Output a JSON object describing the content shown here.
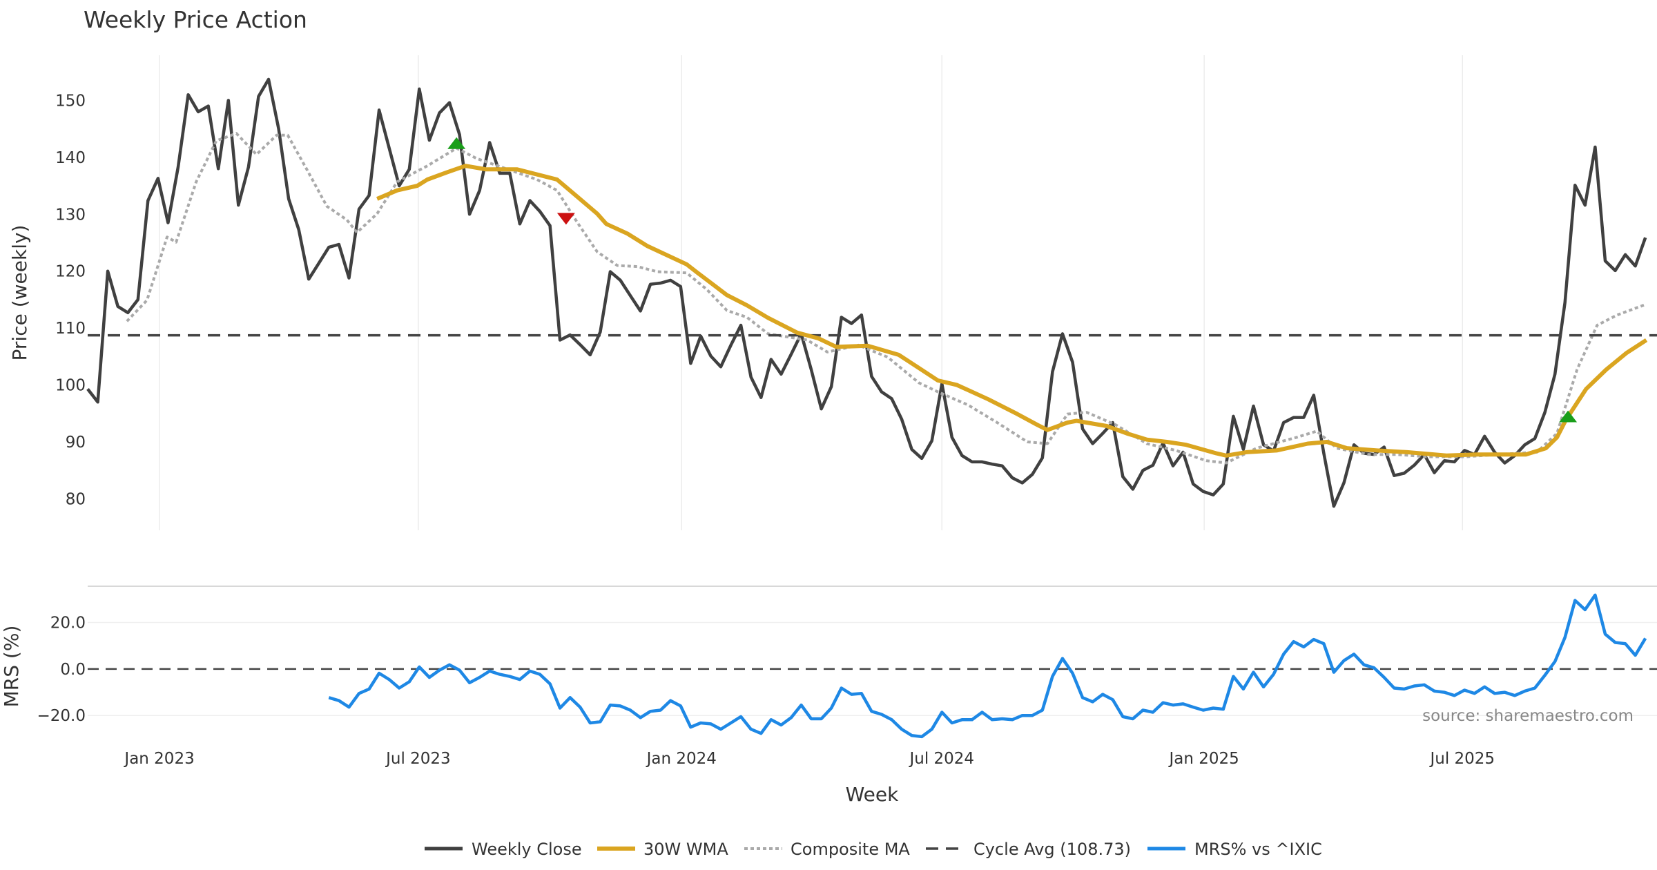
{
  "chart_data": [
    {
      "type": "line",
      "title": "Weekly Price Action",
      "ylabel": "Price (weekly)",
      "xlabel": "Week",
      "ylim": [
        74,
        158
      ],
      "y_ticks": [
        80,
        90,
        100,
        110,
        120,
        130,
        140,
        150
      ],
      "x_unit": "week index from first weekly bar (~Nov 2022)",
      "x_ticks": [
        {
          "label": "Jan 2023",
          "week": 7.15
        },
        {
          "label": "Jul 2023",
          "week": 32.9
        },
        {
          "label": "Jan 2024",
          "week": 59.1
        },
        {
          "label": "Jul 2024",
          "week": 85.0
        },
        {
          "label": "Jan 2025",
          "week": 111.1
        },
        {
          "label": "Jul 2025",
          "week": 136.8
        }
      ],
      "grid": "vertical at x ticks",
      "series": [
        {
          "name": "Weekly Close",
          "color": "#404040",
          "style": "solid",
          "values": [
            99.3,
            97,
            120,
            113.8,
            112.7,
            115,
            132.4,
            136.3,
            128.5,
            138.3,
            151,
            148,
            149,
            138,
            150,
            131.6,
            138.3,
            150.7,
            153.7,
            145,
            132.7,
            127.3,
            118.6,
            121.4,
            124.2,
            124.7,
            118.8,
            130.9,
            133.3,
            148.3,
            141.6,
            135,
            137.9,
            152,
            143,
            147.8,
            149.6,
            144,
            130,
            134.2,
            142.6,
            137.2,
            137.2,
            128.3,
            132.4,
            130.5,
            128,
            107.9,
            108.8,
            107.1,
            105.3,
            109.3,
            119.9,
            118.4,
            115.7,
            113,
            117.7,
            117.9,
            118.4,
            117.3,
            103.8,
            108.6,
            105.1,
            103.2,
            107,
            110.5,
            101.4,
            97.8,
            104.5,
            101.9,
            105.4,
            109,
            102.7,
            95.8,
            99.7,
            111.9,
            110.8,
            112.3,
            101.5,
            98.8,
            97.6,
            94,
            88.7,
            87.1,
            90.2,
            100.2,
            90.8,
            87.6,
            86.5,
            86.5,
            86.1,
            85.8,
            83.7,
            82.8,
            84.3,
            87.2,
            102.3,
            109,
            104,
            92.3,
            89.7,
            91.5,
            93.4,
            83.9,
            81.7,
            85,
            85.9,
            89.8,
            85.8,
            88.2,
            82.6,
            81.3,
            80.7,
            82.6,
            94.5,
            88.7,
            96.3,
            89.5,
            88.4,
            93.4,
            94.3,
            94.3,
            98.2,
            88,
            78.7,
            82.8,
            89.5,
            88,
            87.8,
            89.1,
            84.1,
            84.5,
            85.9,
            87.8,
            84.6,
            86.7,
            86.5,
            88.5,
            87.8,
            91,
            88.2,
            86.3,
            87.6,
            89.5,
            90.6,
            95.2,
            101.9,
            114.5,
            135.1,
            131.6,
            141.8,
            121.8,
            120.1,
            122.9,
            120.9,
            125.9
          ]
        },
        {
          "name": "30W WMA",
          "color": "#DAA520",
          "style": "solid",
          "points": [
            [
              28.8,
              132.7
            ],
            [
              30.8,
              134.2
            ],
            [
              32.8,
              135
            ],
            [
              33.8,
              136.1
            ],
            [
              35.8,
              137.4
            ],
            [
              37.6,
              138.5
            ],
            [
              39.6,
              137.9
            ],
            [
              42.7,
              137.9
            ],
            [
              46.7,
              136.1
            ],
            [
              48.7,
              133.1
            ],
            [
              50.7,
              130.1
            ],
            [
              51.6,
              128.3
            ],
            [
              53.7,
              126.6
            ],
            [
              55.7,
              124.4
            ],
            [
              59.6,
              121.2
            ],
            [
              60.7,
              119.7
            ],
            [
              63.6,
              115.8
            ],
            [
              65.6,
              114
            ],
            [
              67.7,
              111.8
            ],
            [
              70.6,
              109.2
            ],
            [
              72.7,
              108.2
            ],
            [
              74.5,
              106.7
            ],
            [
              77.6,
              106.9
            ],
            [
              80.7,
              105.3
            ],
            [
              82.7,
              103
            ],
            [
              84.6,
              100.8
            ],
            [
              86.5,
              100
            ],
            [
              89.6,
              97.5
            ],
            [
              92.5,
              94.9
            ],
            [
              94.5,
              93
            ],
            [
              95.5,
              92.1
            ],
            [
              97.5,
              93.4
            ],
            [
              98.4,
              93.7
            ],
            [
              101.4,
              92.8
            ],
            [
              103.4,
              91.5
            ],
            [
              105.4,
              90.4
            ],
            [
              107.4,
              90
            ],
            [
              109.3,
              89.5
            ],
            [
              112.3,
              88
            ],
            [
              113.3,
              87.6
            ],
            [
              115.3,
              88.2
            ],
            [
              118.3,
              88.5
            ],
            [
              121.4,
              89.7
            ],
            [
              123.3,
              90
            ],
            [
              125.3,
              88.9
            ],
            [
              128.3,
              88.5
            ],
            [
              131.3,
              88.2
            ],
            [
              135.2,
              87.6
            ],
            [
              138.2,
              87.8
            ],
            [
              143.1,
              87.8
            ],
            [
              145.1,
              88.9
            ],
            [
              146.2,
              90.8
            ],
            [
              147.1,
              93.9
            ],
            [
              149.1,
              99.3
            ],
            [
              151.1,
              102.7
            ],
            [
              153.1,
              105.6
            ],
            [
              155.1,
              107.9
            ]
          ]
        },
        {
          "name": "Composite MA",
          "color": "#AAAAAA",
          "style": "dotted",
          "points": [
            [
              3.9,
              111.2
            ],
            [
              5.9,
              114.9
            ],
            [
              7.9,
              126
            ],
            [
              8.8,
              125.1
            ],
            [
              10.8,
              135.7
            ],
            [
              12.8,
              142.9
            ],
            [
              14.8,
              144.2
            ],
            [
              16.8,
              140.5
            ],
            [
              18.8,
              143.9
            ],
            [
              19.9,
              143.9
            ],
            [
              21.8,
              137.9
            ],
            [
              23.8,
              131.4
            ],
            [
              25.8,
              129
            ],
            [
              26.8,
              126.8
            ],
            [
              28.8,
              130.1
            ],
            [
              30.8,
              135.7
            ],
            [
              33.8,
              138.5
            ],
            [
              36.7,
              141.6
            ],
            [
              38.7,
              139.8
            ],
            [
              41.8,
              137.9
            ],
            [
              44.7,
              136.1
            ],
            [
              46.7,
              134.2
            ],
            [
              48.7,
              128.6
            ],
            [
              50.7,
              123.4
            ],
            [
              52.7,
              121
            ],
            [
              54.7,
              120.8
            ],
            [
              56.7,
              119.9
            ],
            [
              59.6,
              119.7
            ],
            [
              61.6,
              116.8
            ],
            [
              63.6,
              113.1
            ],
            [
              65.6,
              111.9
            ],
            [
              67.7,
              109
            ],
            [
              71.6,
              107.9
            ],
            [
              73.6,
              105.8
            ],
            [
              76.7,
              107
            ],
            [
              79.6,
              104.9
            ],
            [
              82.7,
              100.4
            ],
            [
              84.6,
              98.8
            ],
            [
              87.6,
              96.5
            ],
            [
              90.5,
              93.4
            ],
            [
              93.5,
              90
            ],
            [
              95.5,
              89.7
            ],
            [
              97.5,
              94.9
            ],
            [
              99.4,
              95.2
            ],
            [
              102.3,
              93
            ],
            [
              105.4,
              89.7
            ],
            [
              108.3,
              88.5
            ],
            [
              111.3,
              86.7
            ],
            [
              113.3,
              86.3
            ],
            [
              116.3,
              88.9
            ],
            [
              120.3,
              90.8
            ],
            [
              122.3,
              91.9
            ],
            [
              124.3,
              88.9
            ],
            [
              127.4,
              87.8
            ],
            [
              130.3,
              87.8
            ],
            [
              133.2,
              87.4
            ],
            [
              137.2,
              87.4
            ],
            [
              140.2,
              87.8
            ],
            [
              144.2,
              88.2
            ],
            [
              146.2,
              91.5
            ],
            [
              148.2,
              102.7
            ],
            [
              150.2,
              110.5
            ],
            [
              152.2,
              112.3
            ],
            [
              155.1,
              114.2
            ]
          ]
        },
        {
          "name": "Cycle Avg (108.73)",
          "color": "#444444",
          "style": "dashed",
          "value": 108.73
        }
      ],
      "signals": [
        {
          "type": "buy",
          "week": 36.7,
          "value": 142.5,
          "color": "#1a9e1a"
        },
        {
          "type": "sell",
          "week": 47.6,
          "value": 129.2,
          "color": "#cc1111"
        },
        {
          "type": "buy",
          "week": 147.3,
          "value": 94.5,
          "color": "#1a9e1a"
        }
      ]
    },
    {
      "type": "line",
      "ylabel": "MRS (%)",
      "ylim": [
        -28,
        36
      ],
      "y_ticks": [
        {
          "value": 20,
          "label": "20.0"
        },
        {
          "value": 0,
          "label": "0.0"
        },
        {
          "value": -20,
          "label": "−20.0"
        }
      ],
      "zero_line": "dashed",
      "series": [
        {
          "name": "MRS% vs ^IXIC",
          "color": "#1E88E5",
          "style": "solid",
          "aligned": "end",
          "values": [
            -12.3,
            -13.6,
            -16.4,
            -10.5,
            -8.6,
            -1.8,
            -4.5,
            -8.2,
            -5.5,
            0.9,
            -3.6,
            -0.5,
            1.8,
            -0.5,
            -5.9,
            -3.6,
            -0.9,
            -2.3,
            -3.2,
            -4.5,
            -0.9,
            -2.3,
            -6.4,
            -16.8,
            -12.3,
            -16.4,
            -23.2,
            -22.7,
            -15.5,
            -15.9,
            -17.7,
            -20.9,
            -18.2,
            -17.7,
            -13.6,
            -15.9,
            -25,
            -23.2,
            -23.6,
            -25.9,
            -23.2,
            -20.5,
            -25.9,
            -27.7,
            -21.8,
            -24.1,
            -20.9,
            -15.5,
            -21.4,
            -21.4,
            -16.8,
            -8.2,
            -10.9,
            -10.5,
            -18.2,
            -19.5,
            -21.8,
            -25.9,
            -28.6,
            -29.1,
            -25.9,
            -18.6,
            -23.2,
            -21.8,
            -21.8,
            -18.6,
            -21.8,
            -21.4,
            -21.8,
            -20,
            -20,
            -17.7,
            -3.2,
            4.5,
            -1.8,
            -12.3,
            -14.1,
            -10.9,
            -13.2,
            -20.5,
            -21.4,
            -17.7,
            -18.6,
            -14.5,
            -15.5,
            -15,
            -16.4,
            -17.7,
            -16.8,
            -17.3,
            -3.2,
            -8.6,
            -1.4,
            -7.7,
            -2.3,
            6.4,
            11.8,
            9.5,
            12.7,
            10.9,
            -1.4,
            3.6,
            6.4,
            1.8,
            0.5,
            -3.6,
            -8.2,
            -8.6,
            -7.3,
            -6.8,
            -9.5,
            -10,
            -11.4,
            -9.1,
            -10.5,
            -7.7,
            -10.5,
            -10,
            -11.4,
            -9.5,
            -8.2,
            -2.7,
            3.2,
            13.6,
            29.5,
            25.5,
            31.8,
            15,
            11.4,
            10.9,
            5.9,
            13.2
          ]
        }
      ],
      "annotation": "source: sharemaestro.com"
    }
  ],
  "legend": {
    "placement": "bottom-center",
    "items": [
      "Weekly Close",
      "30W WMA",
      "Composite MA",
      "Cycle Avg (108.73)",
      "MRS% vs ^IXIC"
    ]
  }
}
